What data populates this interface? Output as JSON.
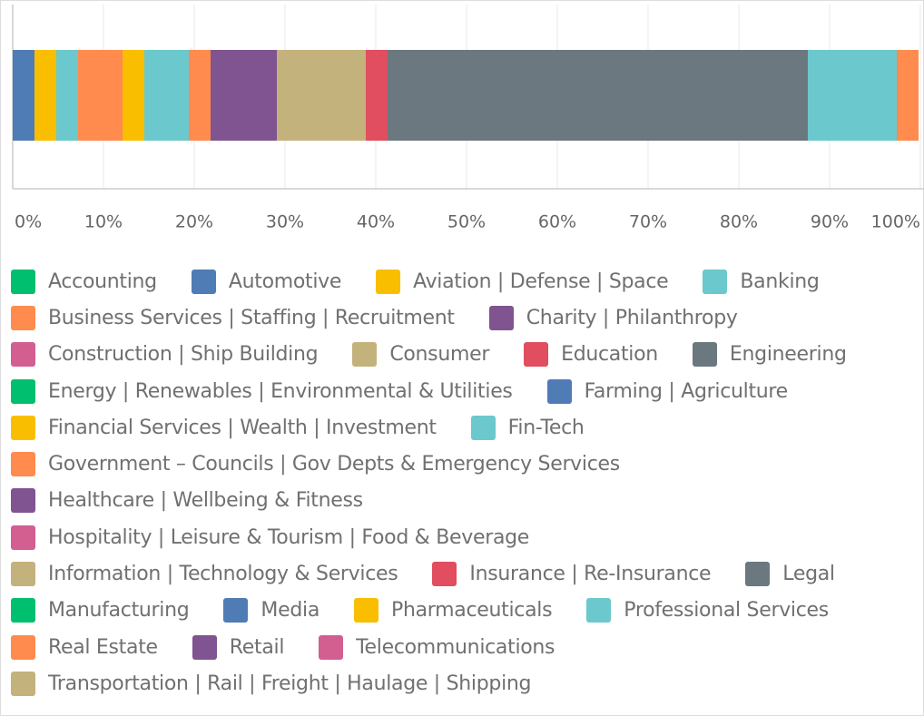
{
  "chart_data": {
    "type": "stacked_bar",
    "orientation": "horizontal",
    "categories": [
      null
    ],
    "xlim": [
      0,
      100
    ],
    "xticks": [
      {
        "value": 0,
        "label": "0%"
      },
      {
        "value": 10,
        "label": "10%"
      },
      {
        "value": 20,
        "label": "20%"
      },
      {
        "value": 30,
        "label": "30%"
      },
      {
        "value": 40,
        "label": "40%"
      },
      {
        "value": 50,
        "label": "50%"
      },
      {
        "value": 60,
        "label": "60%"
      },
      {
        "value": 70,
        "label": "70%"
      },
      {
        "value": 80,
        "label": "80%"
      },
      {
        "value": 90,
        "label": "90%"
      },
      {
        "value": 100,
        "label": "100%"
      }
    ],
    "grid": true,
    "legend": "bottom",
    "series": [
      {
        "name": "Accounting",
        "color": "#00bf6f",
        "values": [
          0
        ]
      },
      {
        "name": "Automotive",
        "color": "#507cb6",
        "values": [
          2.4
        ]
      },
      {
        "name": "Aviation | Defense | Space",
        "color": "#f9be00",
        "values": [
          2.4
        ]
      },
      {
        "name": "Banking",
        "color": "#6bc8cd",
        "values": [
          2.4
        ]
      },
      {
        "name": "Business Services | Staffing | Recruitment",
        "color": "#ff8b4f",
        "values": [
          4.9
        ]
      },
      {
        "name": "Charity | Philanthropy",
        "color": "#7f5491",
        "values": [
          0
        ]
      },
      {
        "name": "Construction | Ship Building",
        "color": "#d25f90",
        "values": [
          0
        ]
      },
      {
        "name": "Consumer",
        "color": "#c4b27d",
        "values": [
          0
        ]
      },
      {
        "name": "Education",
        "color": "#e04e5f",
        "values": [
          0
        ]
      },
      {
        "name": "Engineering",
        "color": "#6b787f",
        "values": [
          0
        ]
      },
      {
        "name": "Energy | Renewables | Environmental & Utilities",
        "color": "#00bf6f",
        "values": [
          0
        ]
      },
      {
        "name": "Farming | Agriculture",
        "color": "#507cb6",
        "values": [
          0
        ]
      },
      {
        "name": "Financial Services | Wealth | Investment",
        "color": "#f9be00",
        "values": [
          2.4
        ]
      },
      {
        "name": "Fin-Tech",
        "color": "#6bc8cd",
        "values": [
          4.9
        ]
      },
      {
        "name": "Government – Councils | Gov Depts & Emergency Services",
        "color": "#ff8b4f",
        "values": [
          2.4
        ]
      },
      {
        "name": "Healthcare | Wellbeing & Fitness",
        "color": "#7f5491",
        "values": [
          7.3
        ]
      },
      {
        "name": "Hospitality | Leisure & Tourism | Food & Beverage",
        "color": "#d25f90",
        "values": [
          0
        ]
      },
      {
        "name": "Information | Technology & Services",
        "color": "#c4b27d",
        "values": [
          9.8
        ]
      },
      {
        "name": "Insurance | Re-Insurance",
        "color": "#e04e5f",
        "values": [
          2.4
        ]
      },
      {
        "name": "Legal",
        "color": "#6b787f",
        "values": [
          46.3
        ]
      },
      {
        "name": "Manufacturing",
        "color": "#00bf6f",
        "values": [
          0
        ]
      },
      {
        "name": "Media",
        "color": "#507cb6",
        "values": [
          0
        ]
      },
      {
        "name": "Pharmaceuticals",
        "color": "#f9be00",
        "values": [
          0
        ]
      },
      {
        "name": "Professional Services",
        "color": "#6bc8cd",
        "values": [
          9.8
        ]
      },
      {
        "name": "Real Estate",
        "color": "#ff8b4f",
        "values": [
          2.4
        ]
      },
      {
        "name": "Retail",
        "color": "#7f5491",
        "values": [
          0
        ]
      },
      {
        "name": "Telecommunications",
        "color": "#d25f90",
        "values": [
          0
        ]
      },
      {
        "name": "Transportation | Rail | Freight | Haulage | Shipping",
        "color": "#c4b27d",
        "values": [
          0
        ]
      }
    ]
  }
}
